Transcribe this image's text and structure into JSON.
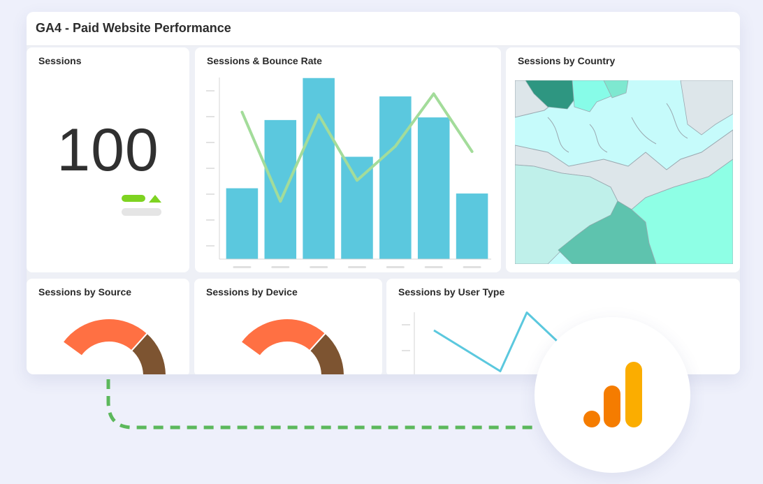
{
  "dashboard": {
    "title": "GA4 - Paid Website Performance"
  },
  "sessions_card": {
    "title": "Sessions",
    "value": "100",
    "trend_icon": "up-triangle-icon",
    "trend_color": "#7ed321"
  },
  "bounce_card": {
    "title": "Sessions & Bounce Rate"
  },
  "country_card": {
    "title": "Sessions by Country"
  },
  "source_card": {
    "title": "Sessions by Source"
  },
  "device_card": {
    "title": "Sessions by Device"
  },
  "usertype_card": {
    "title": "Sessions by User Type"
  },
  "logo": {
    "icon": "google-analytics-logo-icon"
  },
  "colors": {
    "bar": "#5bc8de",
    "line": "#a3dc9a",
    "donut_orange": "#ff7043",
    "donut_brown": "#7d5431",
    "donut_purple": "#8e7ce3",
    "connector": "#5cb85c",
    "ga_orange": "#f57c00",
    "ga_amber": "#fbad00"
  },
  "chart_data": [
    {
      "type": "bar",
      "chart": "sessions-bounce-rate",
      "categories": [
        "",
        "",
        "",
        "",
        "",
        "",
        ""
      ],
      "series": [
        {
          "type": "bar",
          "values": [
            27,
            53,
            69,
            39,
            62,
            54,
            25
          ]
        },
        {
          "type": "line",
          "values": [
            56,
            22,
            55,
            30,
            43,
            63,
            41
          ]
        }
      ],
      "ylim": [
        0,
        70
      ],
      "grid": false
    },
    {
      "type": "pie",
      "chart": "sessions-by-source",
      "values": [
        30,
        30,
        30
      ]
    },
    {
      "type": "pie",
      "chart": "sessions-by-device",
      "values": [
        30,
        30,
        30
      ]
    },
    {
      "type": "line",
      "chart": "sessions-by-user-type",
      "values": [
        50,
        11,
        67,
        33
      ],
      "ylim": [
        0,
        100
      ]
    }
  ]
}
